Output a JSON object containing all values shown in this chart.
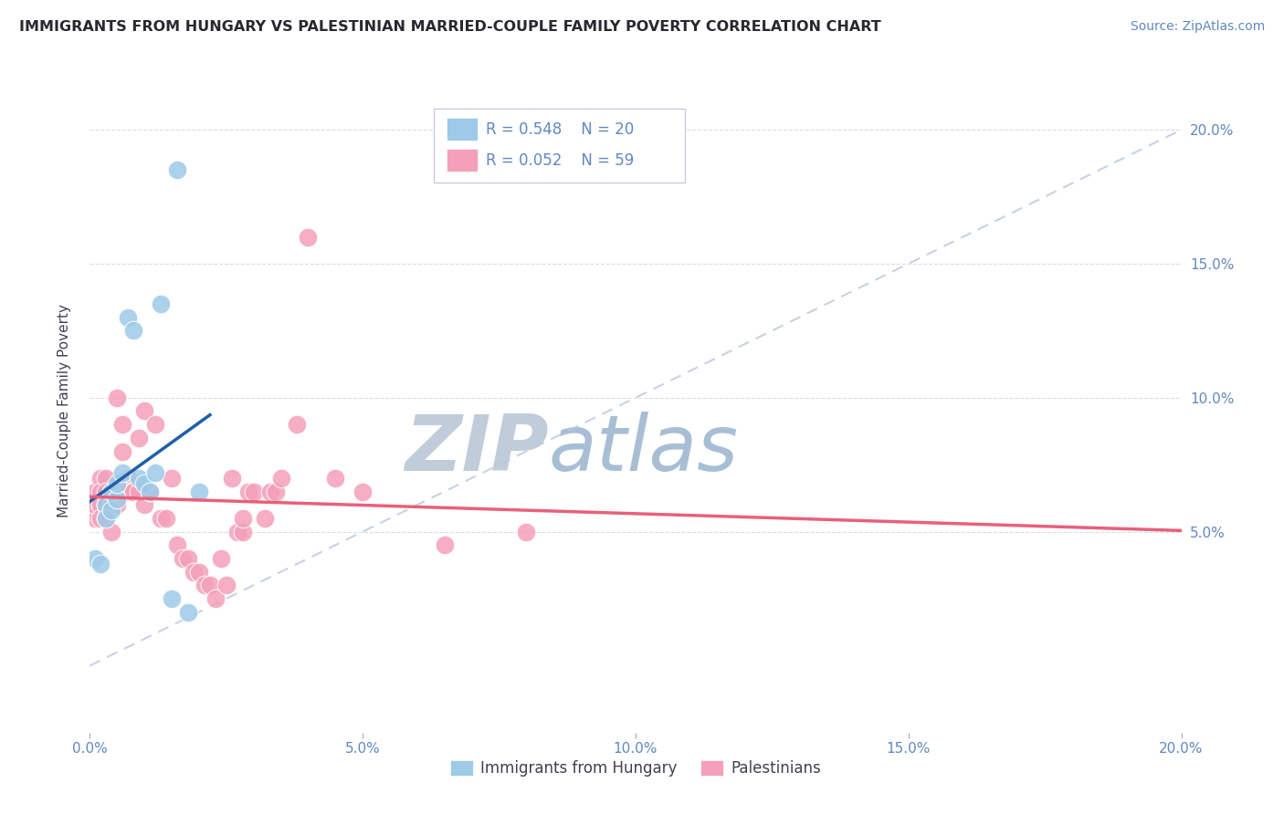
{
  "title": "IMMIGRANTS FROM HUNGARY VS PALESTINIAN MARRIED-COUPLE FAMILY POVERTY CORRELATION CHART",
  "source": "Source: ZipAtlas.com",
  "ylabel": "Married-Couple Family Poverty",
  "ytick_labels": [
    "5.0%",
    "10.0%",
    "15.0%",
    "20.0%"
  ],
  "ytick_vals": [
    0.05,
    0.1,
    0.15,
    0.2
  ],
  "xtick_labels": [
    "0.0%",
    "5.0%",
    "10.0%",
    "15.0%",
    "20.0%"
  ],
  "xtick_vals": [
    0.0,
    0.05,
    0.1,
    0.15,
    0.2
  ],
  "xlim": [
    0.0,
    0.2
  ],
  "ylim": [
    -0.025,
    0.215
  ],
  "legend_r1": "R = 0.548",
  "legend_n1": "N = 20",
  "legend_r2": "R = 0.052",
  "legend_n2": "N = 59",
  "color_hungary": "#9ECAE8",
  "color_palestinian": "#F4A0B8",
  "color_hungary_line": "#1E5FA8",
  "color_palestinian_line": "#E8607A",
  "color_diag_line": "#B8C8DC",
  "watermark_zip": "ZIP",
  "watermark_atlas": "atlas",
  "watermark_color_zip": "#C0CCDA",
  "watermark_color_atlas": "#A8BED4",
  "hungary_x": [
    0.001,
    0.002,
    0.003,
    0.003,
    0.004,
    0.004,
    0.005,
    0.005,
    0.006,
    0.007,
    0.008,
    0.009,
    0.01,
    0.011,
    0.012,
    0.013,
    0.015,
    0.016,
    0.018,
    0.02
  ],
  "hungary_y": [
    0.04,
    0.038,
    0.06,
    0.055,
    0.058,
    0.065,
    0.062,
    0.068,
    0.072,
    0.13,
    0.125,
    0.07,
    0.068,
    0.065,
    0.072,
    0.135,
    0.025,
    0.185,
    0.02,
    0.065
  ],
  "pal_x": [
    0.001,
    0.001,
    0.001,
    0.002,
    0.002,
    0.002,
    0.002,
    0.003,
    0.003,
    0.003,
    0.003,
    0.003,
    0.004,
    0.004,
    0.004,
    0.005,
    0.005,
    0.005,
    0.006,
    0.006,
    0.007,
    0.007,
    0.008,
    0.008,
    0.009,
    0.009,
    0.01,
    0.01,
    0.011,
    0.012,
    0.013,
    0.014,
    0.015,
    0.016,
    0.017,
    0.018,
    0.019,
    0.02,
    0.021,
    0.022,
    0.023,
    0.024,
    0.025,
    0.026,
    0.027,
    0.028,
    0.028,
    0.029,
    0.03,
    0.032,
    0.033,
    0.034,
    0.035,
    0.038,
    0.04,
    0.045,
    0.05,
    0.065,
    0.08
  ],
  "pal_y": [
    0.065,
    0.055,
    0.06,
    0.07,
    0.065,
    0.06,
    0.055,
    0.07,
    0.065,
    0.06,
    0.055,
    0.06,
    0.065,
    0.05,
    0.06,
    0.065,
    0.06,
    0.1,
    0.08,
    0.09,
    0.07,
    0.065,
    0.065,
    0.065,
    0.065,
    0.085,
    0.095,
    0.06,
    0.065,
    0.09,
    0.055,
    0.055,
    0.07,
    0.045,
    0.04,
    0.04,
    0.035,
    0.035,
    0.03,
    0.03,
    0.025,
    0.04,
    0.03,
    0.07,
    0.05,
    0.05,
    0.055,
    0.065,
    0.065,
    0.055,
    0.065,
    0.065,
    0.07,
    0.09,
    0.16,
    0.07,
    0.065,
    0.045,
    0.05
  ],
  "hungary_line_x": [
    0.0,
    0.022
  ],
  "pal_line_x": [
    0.0,
    0.2
  ],
  "bg_color": "#FFFFFF",
  "grid_color": "#D8DCE8",
  "tick_color": "#6088C0",
  "label_color": "#404050"
}
